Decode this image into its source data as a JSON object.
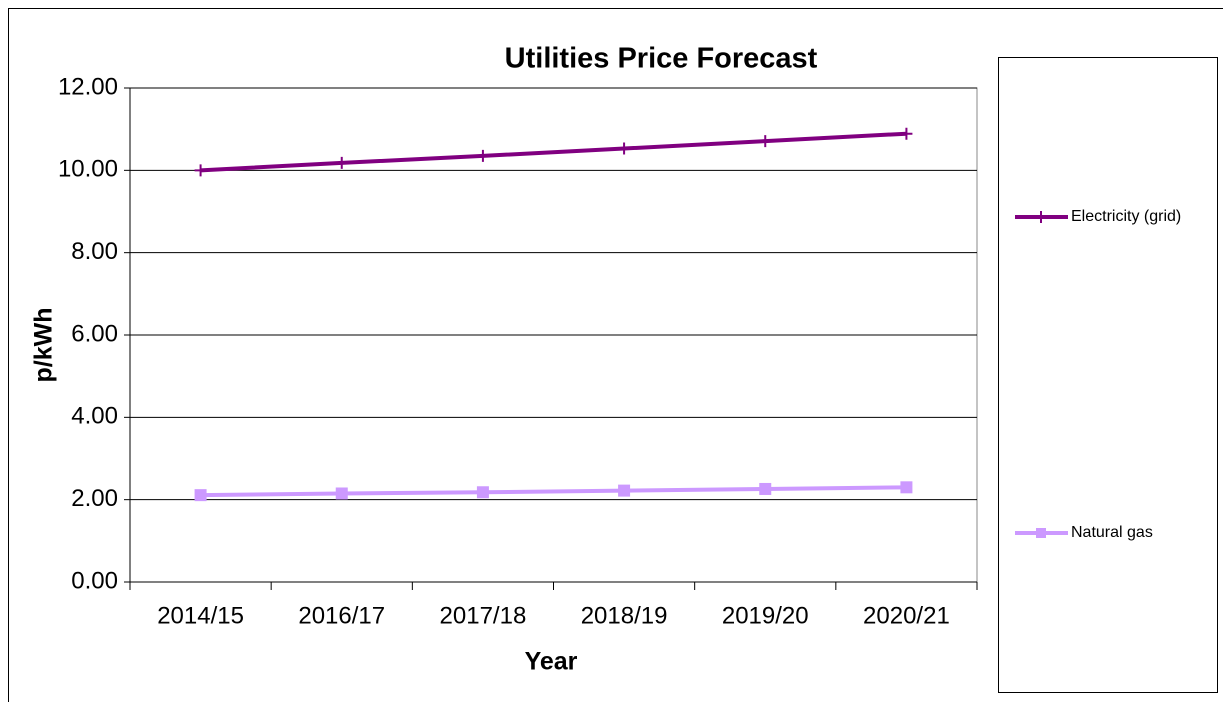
{
  "chart_data": {
    "type": "line",
    "title": "Utilities Price Forecast",
    "x_label": "Year",
    "y_label": "p/kWh",
    "categories": [
      "2014/15",
      "2016/17",
      "2017/18",
      "2018/19",
      "2019/20",
      "2020/21"
    ],
    "series": [
      {
        "name": "Electricity (grid)",
        "color": "#800080",
        "marker": "plus",
        "values": [
          10.0,
          10.18,
          10.35,
          10.53,
          10.71,
          10.89
        ]
      },
      {
        "name": "Natural gas",
        "color": "#cc99ff",
        "marker": "square",
        "values": [
          2.11,
          2.15,
          2.18,
          2.22,
          2.26,
          2.3
        ]
      }
    ],
    "ylim": [
      0,
      12
    ],
    "yticks": [
      {
        "value": 0,
        "label": "0.00"
      },
      {
        "value": 2,
        "label": "2.00"
      },
      {
        "value": 4,
        "label": "4.00"
      },
      {
        "value": 6,
        "label": "6.00"
      },
      {
        "value": 8,
        "label": "8.00"
      },
      {
        "value": 10,
        "label": "10.00"
      },
      {
        "value": 12,
        "label": "12.00"
      }
    ],
    "grid": true,
    "legend": "right"
  }
}
